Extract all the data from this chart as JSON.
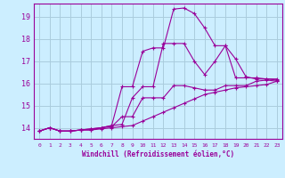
{
  "xlabel": "Windchill (Refroidissement éolien,°C)",
  "background_color": "#cceeff",
  "grid_color": "#aaccdd",
  "line_color": "#990099",
  "xlim": [
    -0.5,
    23.5
  ],
  "ylim": [
    13.5,
    19.6
  ],
  "xticks": [
    0,
    1,
    2,
    3,
    4,
    5,
    6,
    7,
    8,
    9,
    10,
    11,
    12,
    13,
    14,
    15,
    16,
    17,
    18,
    19,
    20,
    21,
    22,
    23
  ],
  "yticks": [
    14,
    15,
    16,
    17,
    18,
    19
  ],
  "curves": [
    {
      "x": [
        0,
        1,
        2,
        3,
        4,
        5,
        6,
        7,
        8,
        9,
        10,
        11,
        12,
        13,
        14,
        15,
        16,
        17,
        18,
        19,
        20,
        21,
        22,
        23
      ],
      "y": [
        13.85,
        14.0,
        13.85,
        13.85,
        13.9,
        13.9,
        14.0,
        14.1,
        15.85,
        15.85,
        17.45,
        17.6,
        17.6,
        19.35,
        19.4,
        19.15,
        18.5,
        17.7,
        17.7,
        16.25,
        16.25,
        16.25,
        16.2,
        16.2
      ]
    },
    {
      "x": [
        0,
        1,
        2,
        3,
        4,
        5,
        6,
        7,
        8,
        9,
        10,
        11,
        12,
        13,
        14,
        15,
        16,
        17,
        18,
        19,
        20,
        21,
        22,
        23
      ],
      "y": [
        13.85,
        14.0,
        13.85,
        13.85,
        13.9,
        13.95,
        14.0,
        14.1,
        14.15,
        15.35,
        15.85,
        15.85,
        17.8,
        17.8,
        17.8,
        17.0,
        16.4,
        17.0,
        17.7,
        17.1,
        16.3,
        16.2,
        16.2,
        16.15
      ]
    },
    {
      "x": [
        0,
        1,
        2,
        3,
        4,
        5,
        6,
        7,
        8,
        9,
        10,
        11,
        12,
        13,
        14,
        15,
        16,
        17,
        18,
        19,
        20,
        21,
        22,
        23
      ],
      "y": [
        13.85,
        14.0,
        13.85,
        13.85,
        13.9,
        13.95,
        14.0,
        14.05,
        14.5,
        14.5,
        15.35,
        15.35,
        15.35,
        15.9,
        15.9,
        15.8,
        15.7,
        15.7,
        15.9,
        15.9,
        15.9,
        16.1,
        16.15,
        16.1
      ]
    },
    {
      "x": [
        0,
        1,
        2,
        3,
        4,
        5,
        6,
        7,
        8,
        9,
        10,
        11,
        12,
        13,
        14,
        15,
        16,
        17,
        18,
        19,
        20,
        21,
        22,
        23
      ],
      "y": [
        13.85,
        14.0,
        13.85,
        13.85,
        13.9,
        13.9,
        13.95,
        14.0,
        14.05,
        14.1,
        14.3,
        14.5,
        14.7,
        14.9,
        15.1,
        15.3,
        15.5,
        15.6,
        15.7,
        15.8,
        15.85,
        15.9,
        15.95,
        16.1
      ]
    }
  ]
}
